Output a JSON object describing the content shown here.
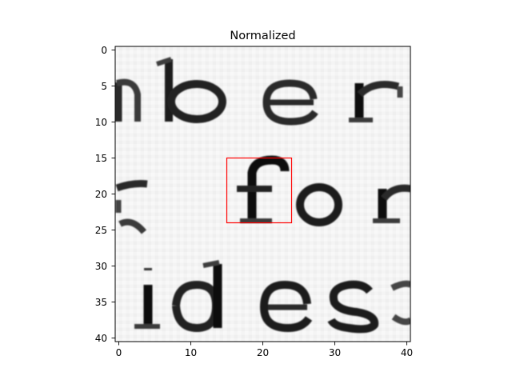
{
  "chart_data": {
    "type": "heatmap",
    "title": "Normalized",
    "colormap": "gray",
    "xlim": [
      -0.5,
      40.5
    ],
    "ylim": [
      40.5,
      -0.5
    ],
    "x_ticks": [
      "0",
      "10",
      "20",
      "30",
      "40"
    ],
    "y_ticks": [
      "0",
      "5",
      "10",
      "15",
      "20",
      "25",
      "30",
      "35",
      "40"
    ],
    "grid": false,
    "legend": "none",
    "image_content": "grayscale crop of scanned text: 'nber', 'for', 'ides'",
    "annotation": {
      "type": "rectangle",
      "color": "#ff0000",
      "x0": 15,
      "y0": 15,
      "x1": 24,
      "y1": 24
    }
  }
}
